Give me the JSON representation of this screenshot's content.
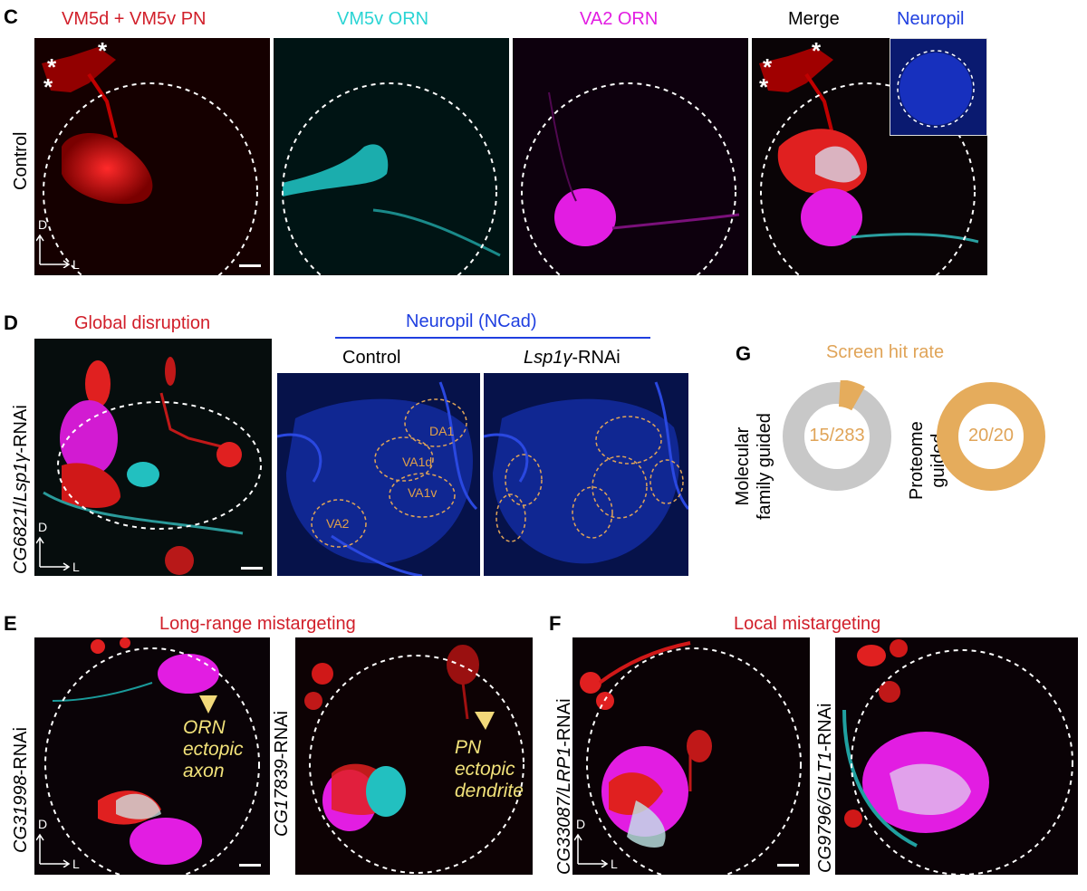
{
  "panel_c": {
    "letter": "C",
    "row_label": "Control",
    "headers": {
      "pn": "VM5d + VM5v PN",
      "vm5v": "VM5v ORN",
      "va2": "VA2 ORN",
      "merge": "Merge",
      "neuropil": "Neuropil"
    },
    "star": "*",
    "axis_d": "D",
    "axis_l": "L"
  },
  "panel_d": {
    "letter": "D",
    "title": "Global disruption",
    "row_label_gene1": "CG6821",
    "row_label_slash": "/",
    "row_label_gene2": "Lsp1γ",
    "row_label_suffix": "-RNAi",
    "neuropil_header": "Neuropil (NCad)",
    "control_label": "Control",
    "rnai_gene": "Lsp1γ",
    "rnai_suffix": "-RNAi",
    "glomeruli": [
      "DA1",
      "VA1d",
      "VA1v",
      "VA2"
    ],
    "axis_d": "D",
    "axis_l": "L"
  },
  "panel_e": {
    "letter": "E",
    "title": "Long-range mistargeting",
    "left_gene": "CG31998",
    "left_suffix": "-RNAi",
    "right_gene": "CG17839",
    "right_suffix": "-RNAi",
    "left_annotation": [
      "ORN",
      "ectopic",
      "axon"
    ],
    "right_annotation": [
      "PN",
      "ectopic",
      "dendrite"
    ],
    "axis_d": "D",
    "axis_l": "L"
  },
  "panel_f": {
    "letter": "F",
    "title": "Local mistargeting",
    "left_gene": "CG33087/LRP1",
    "left_suffix": "-RNAi",
    "right_gene": "CG9796/GILT1",
    "right_suffix": "-RNAi",
    "axis_d": "D",
    "axis_l": "L"
  },
  "panel_g": {
    "letter": "G",
    "title": "Screen hit rate",
    "left_label_line1": "Molecular",
    "left_label_line2": "family guided",
    "left_value": "15/283",
    "left_hits": 15,
    "left_total": 283,
    "right_label_line1": "Proteome",
    "right_label_line2": "guided",
    "right_value": "20/20",
    "right_hits": 20,
    "right_total": 20,
    "colors": {
      "hit": "#e5ac5c",
      "miss": "#c8c8c8"
    }
  }
}
